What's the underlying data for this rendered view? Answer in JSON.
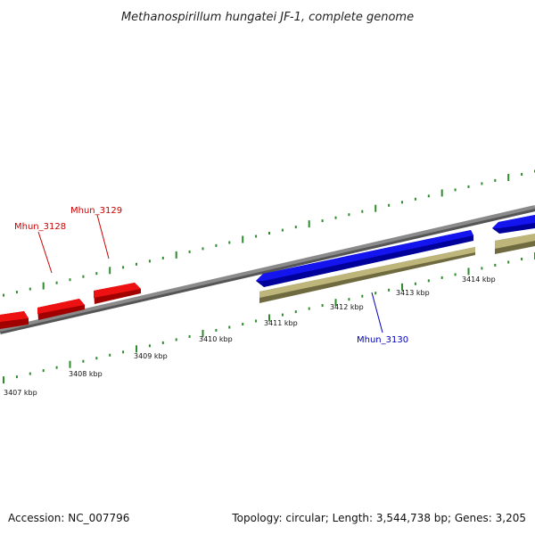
{
  "title": "Methanospirillum hungatei JF-1, complete genome",
  "footer": {
    "accession": "Accession: NC_007796",
    "summary": "Topology: circular; Length: 3,544,738 bp; Genes: 3,205"
  },
  "colors": {
    "background": "#ffffff",
    "backbone": "#7f7f7f",
    "tick": "#2e8b2e",
    "gene_red": "#ee1111",
    "gene_blue": "#1414ee",
    "gene_olive": "#bdb57a",
    "label_red": "#cc0000",
    "label_blue": "#0000bb"
  },
  "scale": {
    "unit": "kbp",
    "labels": [
      "3407 kbp",
      "3408 kbp",
      "3409 kbp",
      "3410 kbp",
      "3411 kbp",
      "3412 kbp",
      "3413 kbp",
      "3414 kbp"
    ]
  },
  "genes": [
    {
      "label": "Mhun_3128",
      "strand": "forward",
      "color": "red"
    },
    {
      "label": "Mhun_3129",
      "strand": "forward",
      "color": "red"
    },
    {
      "label": "Mhun_3130",
      "strand": "reverse",
      "color": "blue"
    }
  ]
}
